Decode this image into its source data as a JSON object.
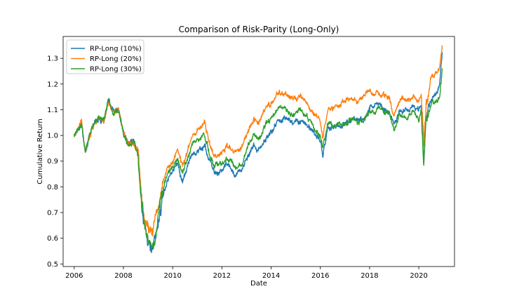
{
  "chart_data": {
    "type": "line",
    "title": "Comparison of Risk-Parity (Long-Only)",
    "xlabel": "Date",
    "ylabel": "Cumulative Return",
    "xlim": [
      2005.55,
      2021.45
    ],
    "ylim": [
      0.49,
      1.385
    ],
    "x_ticks": [
      2006,
      2008,
      2010,
      2012,
      2014,
      2016,
      2018,
      2020
    ],
    "x_tick_labels": [
      "2006",
      "2008",
      "2010",
      "2012",
      "2014",
      "2016",
      "2018",
      "2020"
    ],
    "y_ticks": [
      0.5,
      0.6,
      0.7,
      0.8,
      0.9,
      1.0,
      1.1,
      1.2,
      1.3
    ],
    "y_tick_labels": [
      "0.5",
      "0.6",
      "0.7",
      "0.8",
      "0.9",
      "1.0",
      "1.1",
      "1.2",
      "1.3"
    ],
    "grid": false,
    "legend_position": "upper-left",
    "series": [
      {
        "name": "RP-Long (10%)",
        "color": "#1f77b4",
        "x": [
          2006.0,
          2006.3,
          2006.45,
          2006.6,
          2006.8,
          2007.0,
          2007.2,
          2007.4,
          2007.6,
          2007.8,
          2008.0,
          2008.2,
          2008.4,
          2008.6,
          2008.75,
          2008.9,
          2009.0,
          2009.2,
          2009.4,
          2009.6,
          2009.8,
          2010.0,
          2010.2,
          2010.4,
          2010.6,
          2010.8,
          2011.0,
          2011.3,
          2011.5,
          2011.7,
          2011.9,
          2012.0,
          2012.2,
          2012.5,
          2012.8,
          2013.0,
          2013.3,
          2013.5,
          2013.8,
          2014.0,
          2014.3,
          2014.6,
          2014.9,
          2015.2,
          2015.4,
          2015.6,
          2015.8,
          2016.0,
          2016.1,
          2016.3,
          2016.6,
          2016.9,
          2017.2,
          2017.5,
          2017.8,
          2018.0,
          2018.2,
          2018.5,
          2018.8,
          2019.0,
          2019.2,
          2019.5,
          2019.8,
          2020.0,
          2020.1,
          2020.2,
          2020.3,
          2020.5,
          2020.7,
          2020.85,
          2020.95
        ],
        "y": [
          1.0,
          1.05,
          0.93,
          0.99,
          1.05,
          1.07,
          1.05,
          1.13,
          1.09,
          1.1,
          1.01,
          0.97,
          0.98,
          0.93,
          0.7,
          0.64,
          0.6,
          0.55,
          0.65,
          0.76,
          0.83,
          0.87,
          0.89,
          0.82,
          0.88,
          0.93,
          0.94,
          0.96,
          0.9,
          0.85,
          0.86,
          0.86,
          0.89,
          0.85,
          0.87,
          0.9,
          0.96,
          0.94,
          0.99,
          1.01,
          1.06,
          1.07,
          1.05,
          1.06,
          1.05,
          1.02,
          1.0,
          0.98,
          0.92,
          1.03,
          1.03,
          1.04,
          1.06,
          1.06,
          1.07,
          1.11,
          1.12,
          1.11,
          1.09,
          1.04,
          1.1,
          1.1,
          1.11,
          1.1,
          1.12,
          0.91,
          1.08,
          1.14,
          1.17,
          1.2,
          1.32
        ]
      },
      {
        "name": "RP-Long (20%)",
        "color": "#ff7f0e",
        "x": [
          2006.0,
          2006.3,
          2006.45,
          2006.6,
          2006.8,
          2007.0,
          2007.2,
          2007.4,
          2007.6,
          2007.8,
          2008.0,
          2008.2,
          2008.4,
          2008.6,
          2008.75,
          2008.9,
          2009.0,
          2009.2,
          2009.4,
          2009.6,
          2009.8,
          2010.0,
          2010.2,
          2010.4,
          2010.6,
          2010.8,
          2011.0,
          2011.3,
          2011.5,
          2011.7,
          2011.9,
          2012.0,
          2012.2,
          2012.5,
          2012.8,
          2013.0,
          2013.3,
          2013.5,
          2013.8,
          2014.0,
          2014.3,
          2014.6,
          2014.9,
          2015.2,
          2015.4,
          2015.6,
          2015.8,
          2016.0,
          2016.1,
          2016.3,
          2016.6,
          2016.9,
          2017.2,
          2017.5,
          2017.8,
          2018.0,
          2018.2,
          2018.5,
          2018.8,
          2019.0,
          2019.2,
          2019.5,
          2019.8,
          2020.0,
          2020.1,
          2020.2,
          2020.3,
          2020.5,
          2020.7,
          2020.85,
          2020.95
        ],
        "y": [
          1.0,
          1.05,
          0.93,
          0.99,
          1.05,
          1.07,
          1.05,
          1.13,
          1.09,
          1.1,
          1.01,
          0.97,
          0.98,
          0.95,
          0.74,
          0.67,
          0.65,
          0.62,
          0.72,
          0.82,
          0.87,
          0.89,
          0.95,
          0.88,
          0.94,
          1.0,
          1.02,
          1.05,
          0.97,
          0.92,
          0.93,
          0.93,
          0.96,
          0.93,
          0.95,
          1.0,
          1.07,
          1.05,
          1.11,
          1.12,
          1.17,
          1.16,
          1.14,
          1.15,
          1.13,
          1.1,
          1.08,
          1.06,
          0.99,
          1.1,
          1.11,
          1.13,
          1.14,
          1.13,
          1.15,
          1.17,
          1.16,
          1.16,
          1.15,
          1.08,
          1.14,
          1.14,
          1.15,
          1.13,
          1.16,
          0.96,
          1.13,
          1.22,
          1.24,
          1.27,
          1.34
        ]
      },
      {
        "name": "RP-Long (30%)",
        "color": "#2ca02c",
        "x": [
          2006.0,
          2006.3,
          2006.45,
          2006.6,
          2006.8,
          2007.0,
          2007.2,
          2007.4,
          2007.6,
          2007.8,
          2008.0,
          2008.2,
          2008.4,
          2008.6,
          2008.75,
          2008.9,
          2009.0,
          2009.2,
          2009.4,
          2009.6,
          2009.8,
          2010.0,
          2010.2,
          2010.4,
          2010.6,
          2010.8,
          2011.0,
          2011.3,
          2011.5,
          2011.7,
          2011.9,
          2012.0,
          2012.2,
          2012.5,
          2012.8,
          2013.0,
          2013.3,
          2013.5,
          2013.8,
          2014.0,
          2014.3,
          2014.6,
          2014.9,
          2015.2,
          2015.4,
          2015.6,
          2015.8,
          2016.0,
          2016.1,
          2016.3,
          2016.6,
          2016.9,
          2017.2,
          2017.5,
          2017.8,
          2018.0,
          2018.2,
          2018.5,
          2018.8,
          2019.0,
          2019.2,
          2019.5,
          2019.8,
          2020.0,
          2020.1,
          2020.2,
          2020.3,
          2020.5,
          2020.7,
          2020.85,
          2020.95
        ],
        "y": [
          1.0,
          1.05,
          0.93,
          0.99,
          1.05,
          1.07,
          1.05,
          1.14,
          1.09,
          1.1,
          1.0,
          0.96,
          0.98,
          0.93,
          0.72,
          0.64,
          0.6,
          0.57,
          0.68,
          0.79,
          0.85,
          0.87,
          0.91,
          0.85,
          0.91,
          0.97,
          0.98,
          1.0,
          0.93,
          0.88,
          0.89,
          0.89,
          0.92,
          0.88,
          0.9,
          0.94,
          1.01,
          0.99,
          1.05,
          1.06,
          1.11,
          1.1,
          1.08,
          1.1,
          1.08,
          1.05,
          1.02,
          1.0,
          0.95,
          1.04,
          1.04,
          1.05,
          1.06,
          1.05,
          1.07,
          1.09,
          1.1,
          1.1,
          1.09,
          1.02,
          1.08,
          1.07,
          1.09,
          1.06,
          1.1,
          0.87,
          1.06,
          1.12,
          1.13,
          1.15,
          1.26
        ]
      }
    ]
  }
}
